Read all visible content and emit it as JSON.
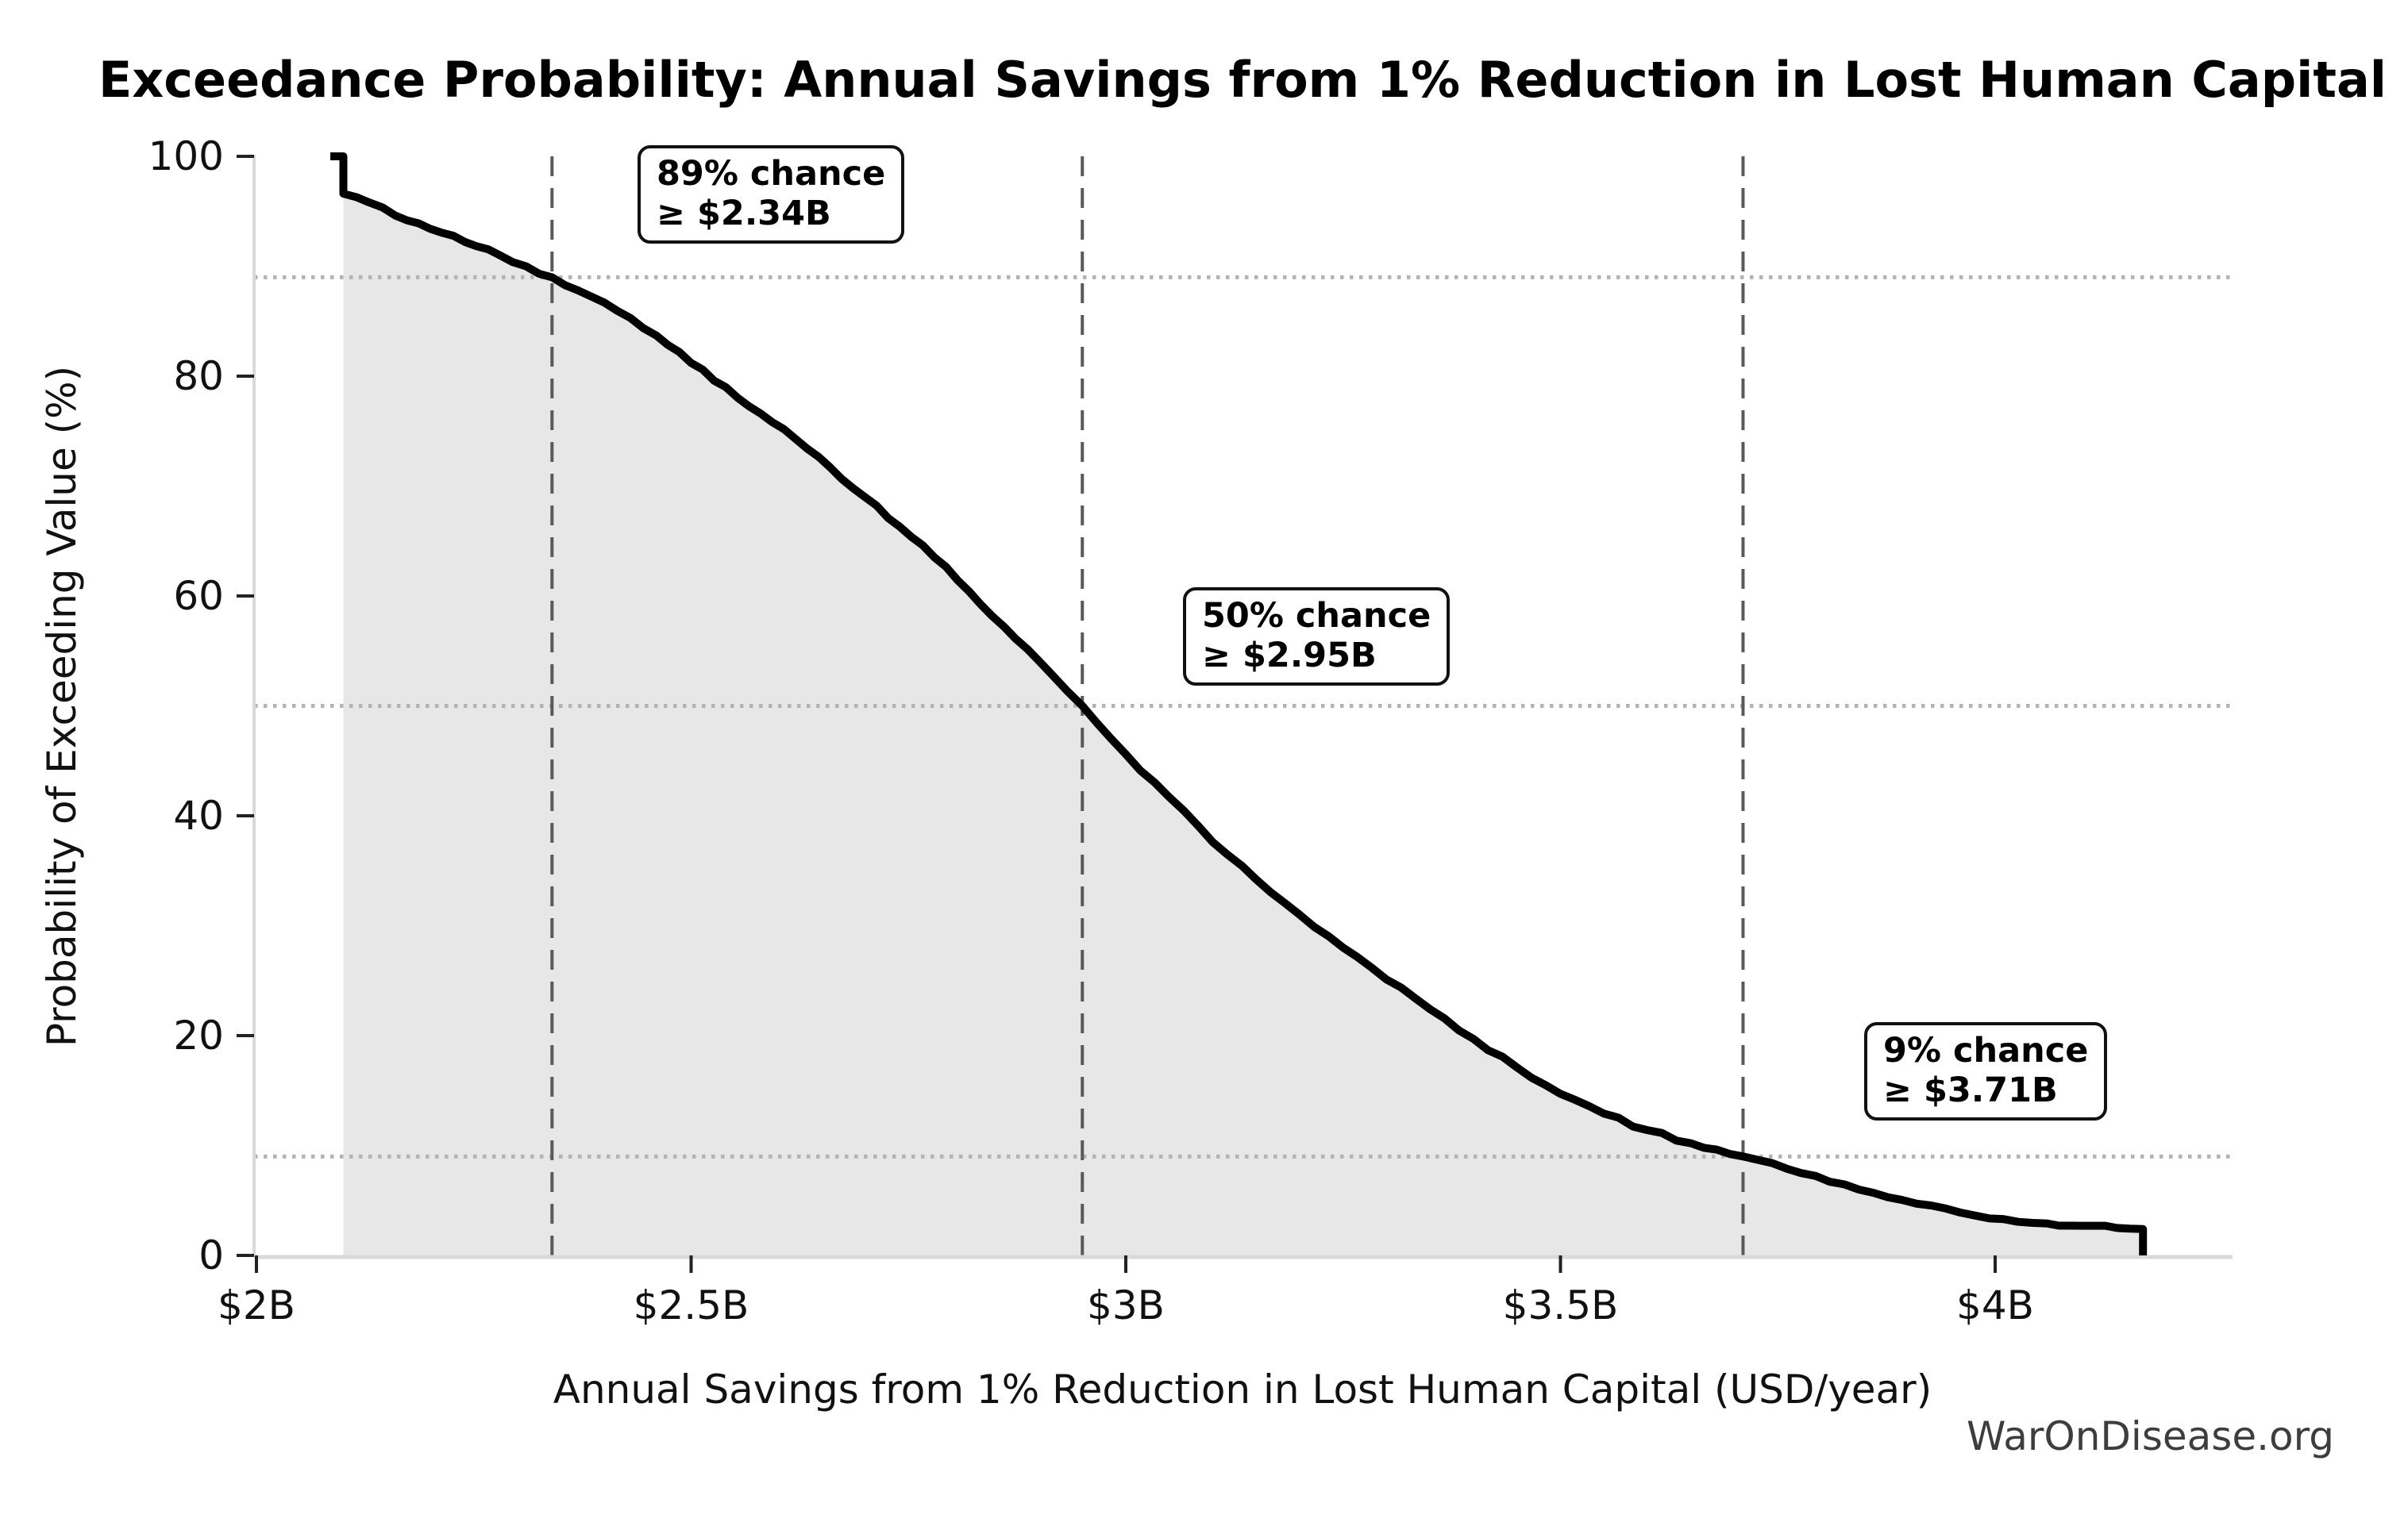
{
  "title": "Exceedance Probability: Annual Savings from 1% Reduction in Lost Human Capital",
  "watermark": "WarOnDisease.org",
  "chart_data": {
    "type": "line",
    "subtype": "exceedance-probability-curve",
    "title": "Exceedance Probability: Annual Savings from 1% Reduction in Lost Human Capital",
    "xlabel": "Annual Savings from 1% Reduction in Lost Human Capital (USD/year)",
    "ylabel": "Probability of Exceeding Value (%)",
    "xlim": [
      2.0,
      4.27
    ],
    "ylim": [
      0,
      100
    ],
    "x_ticks": [
      {
        "value": 2.0,
        "label": "$2B"
      },
      {
        "value": 2.5,
        "label": "$2.5B"
      },
      {
        "value": 3.0,
        "label": "$3B"
      },
      {
        "value": 3.5,
        "label": "$3.5B"
      },
      {
        "value": 4.0,
        "label": "$4B"
      }
    ],
    "y_ticks": [
      {
        "value": 0,
        "label": "0"
      },
      {
        "value": 20,
        "label": "20"
      },
      {
        "value": 40,
        "label": "40"
      },
      {
        "value": 60,
        "label": "60"
      },
      {
        "value": 80,
        "label": "80"
      },
      {
        "value": 100,
        "label": "100"
      }
    ],
    "legend": null,
    "grid": "reference lines only",
    "series": [
      {
        "name": "Exceedance probability",
        "units_x": "USD billions per year",
        "units_y": "percent",
        "points_value_B_vs_probability_pct": [
          [
            2.085,
            100
          ],
          [
            2.1,
            100
          ],
          [
            2.1,
            96.6
          ],
          [
            2.13,
            95.8
          ],
          [
            2.16,
            94.6
          ],
          [
            2.2,
            93.4
          ],
          [
            2.24,
            92.2
          ],
          [
            2.28,
            91.0
          ],
          [
            2.31,
            90.0
          ],
          [
            2.34,
            89.0
          ],
          [
            2.37,
            87.8
          ],
          [
            2.4,
            86.7
          ],
          [
            2.43,
            85.3
          ],
          [
            2.46,
            83.7
          ],
          [
            2.5,
            81.2
          ],
          [
            2.54,
            79.0
          ],
          [
            2.58,
            76.6
          ],
          [
            2.62,
            74.3
          ],
          [
            2.66,
            71.7
          ],
          [
            2.7,
            69.0
          ],
          [
            2.74,
            66.3
          ],
          [
            2.78,
            63.5
          ],
          [
            2.82,
            60.4
          ],
          [
            2.86,
            57.2
          ],
          [
            2.9,
            54.1
          ],
          [
            2.95,
            50.0
          ],
          [
            3.0,
            45.6
          ],
          [
            3.05,
            41.7
          ],
          [
            3.1,
            37.6
          ],
          [
            3.15,
            34.2
          ],
          [
            3.2,
            31.0
          ],
          [
            3.25,
            28.0
          ],
          [
            3.3,
            25.1
          ],
          [
            3.35,
            22.4
          ],
          [
            3.4,
            19.7
          ],
          [
            3.45,
            17.1
          ],
          [
            3.5,
            14.7
          ],
          [
            3.55,
            12.9
          ],
          [
            3.6,
            11.4
          ],
          [
            3.65,
            10.2
          ],
          [
            3.71,
            9.0
          ],
          [
            3.76,
            7.9
          ],
          [
            3.81,
            6.7
          ],
          [
            3.86,
            5.7
          ],
          [
            3.91,
            4.7
          ],
          [
            3.96,
            3.9
          ],
          [
            4.01,
            3.3
          ],
          [
            4.06,
            2.9
          ],
          [
            4.1,
            2.7
          ],
          [
            4.14,
            2.5
          ],
          [
            4.17,
            2.4
          ],
          [
            4.17,
            0
          ]
        ]
      }
    ],
    "reference_lines": {
      "horizontal_dotted_probabilities_pct": [
        89,
        50,
        9
      ],
      "vertical_dashed_values_B": [
        2.34,
        2.95,
        3.71
      ]
    },
    "annotations": [
      {
        "line1": "89% chance",
        "line2": "≥ $2.34B",
        "probability_pct": 89,
        "value_B": 2.34
      },
      {
        "line1": "50% chance",
        "line2": "≥ $2.95B",
        "probability_pct": 50,
        "value_B": 2.95
      },
      {
        "line1": "9% chance",
        "line2": "≥ $3.71B",
        "probability_pct": 9,
        "value_B": 3.71
      }
    ],
    "colors": {
      "curve": "#000000",
      "fill": "#e7e7e7",
      "spine": "#d9d9d9",
      "tick": "#222222",
      "dashed_line": "#595959",
      "dotted_line": "#b3b3b3",
      "annotation_border": "#111111",
      "watermark": "#3d3d3d"
    }
  }
}
